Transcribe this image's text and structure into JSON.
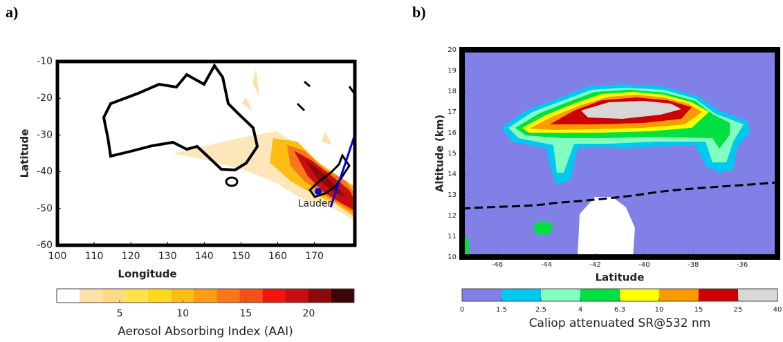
{
  "chart_data": [
    {
      "type": "map",
      "panel": "a)",
      "x_label": "Longitude",
      "y_label": "Latitude",
      "xlim": [
        100,
        181
      ],
      "ylim": [
        -60,
        -10
      ],
      "xticks": [
        100,
        110,
        120,
        130,
        140,
        150,
        160,
        170
      ],
      "yticks": [
        -60,
        -50,
        -40,
        -30,
        -20,
        -10
      ],
      "annotation": "Lauder",
      "colorbar": {
        "label": "Aerosol Absorbing Index (AAI)",
        "lim": [
          0,
          23.6
        ],
        "ticks": [
          5,
          10,
          15,
          20
        ],
        "colors": [
          "#ffffff",
          "#fde1a9",
          "#fed985",
          "#fde24d",
          "#fdd91d",
          "#fdbd13",
          "#fc9c17",
          "#f97718",
          "#f5501a",
          "#f0150f",
          "#c80e0e",
          "#8d0a0a",
          "#3c0505"
        ]
      }
    },
    {
      "type": "curtain",
      "panel": "b)",
      "x_label": "Latitude",
      "y_label": "Altitude (km)",
      "xlim": [
        -47.44,
        -34.56
      ],
      "ylim": [
        10,
        20
      ],
      "xticks": [
        -46,
        -44,
        -42,
        -40,
        -38,
        -36
      ],
      "yticks": [
        10,
        11,
        12,
        13,
        14,
        15,
        16,
        17,
        18,
        19,
        20
      ],
      "colorbar": {
        "label": "Caliop attenuated SR@532 nm",
        "ticks": [
          0,
          1.5,
          2.5,
          4,
          6.3,
          10,
          15,
          25,
          40
        ],
        "colors": [
          "#8080e6",
          "#00c8f0",
          "#80ffc0",
          "#00e040",
          "#ffff00",
          "#ff9900",
          "#cc0000",
          "#d8d8d8"
        ]
      }
    }
  ]
}
